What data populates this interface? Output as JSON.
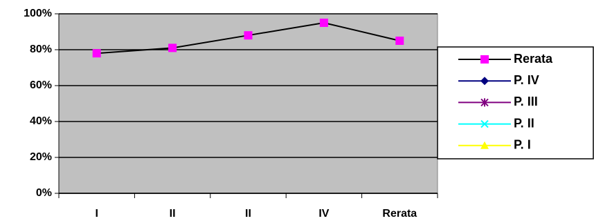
{
  "chart_data": {
    "type": "line",
    "categories": [
      "I",
      "II",
      "II",
      "IV",
      "Rerata"
    ],
    "series": [
      {
        "name": "Rerata",
        "color": "#000000",
        "marker_color": "#ff00ff",
        "marker": "square",
        "values": [
          78,
          81,
          88,
          95,
          85
        ]
      },
      {
        "name": "P. IV",
        "color": "#000080",
        "marker_color": "#000080",
        "marker": "diamond",
        "values": [
          null,
          null,
          null,
          null,
          null
        ]
      },
      {
        "name": "P. III",
        "color": "#800080",
        "marker_color": "#800080",
        "marker": "asterisk",
        "values": [
          null,
          null,
          null,
          null,
          null
        ]
      },
      {
        "name": "P. II",
        "color": "#00ffff",
        "marker_color": "#00ffff",
        "marker": "x",
        "values": [
          null,
          null,
          null,
          null,
          null
        ]
      },
      {
        "name": "P. I",
        "color": "#ffff00",
        "marker_color": "#ffff00",
        "marker": "triangle",
        "values": [
          null,
          null,
          null,
          null,
          null
        ]
      }
    ],
    "ylim": [
      0,
      100
    ],
    "yticks": [
      {
        "value": 0,
        "label": "0%"
      },
      {
        "value": 20,
        "label": "20%"
      },
      {
        "value": 40,
        "label": "40%"
      },
      {
        "value": 60,
        "label": "60%"
      },
      {
        "value": 80,
        "label": "80%"
      },
      {
        "value": 100,
        "label": "100%"
      }
    ],
    "grid": true,
    "plot_background": "#c0c0c0",
    "legend": "right"
  }
}
